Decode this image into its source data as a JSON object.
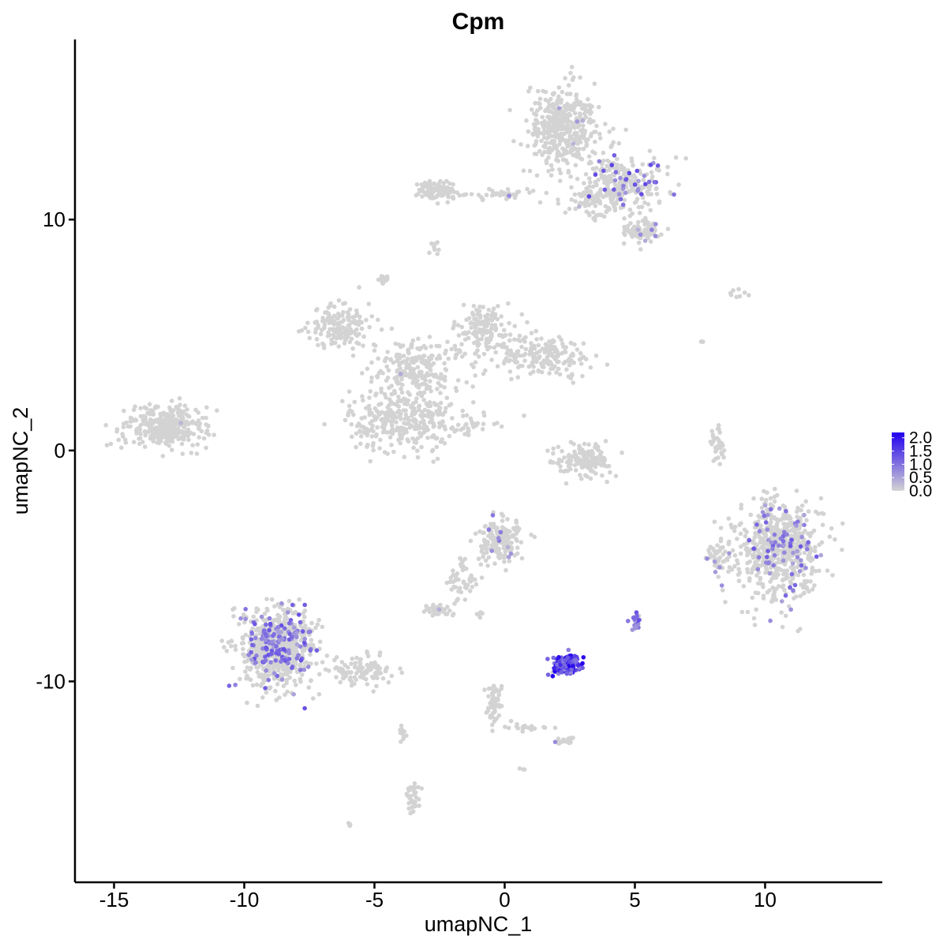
{
  "chart_data": {
    "type": "scatter",
    "title": "Cpm",
    "xlabel": "umapNC_1",
    "ylabel": "umapNC_2",
    "xlim": [
      -16.5,
      14.5
    ],
    "ylim": [
      -18.7,
      17.8
    ],
    "x_ticks": [
      -15,
      -10,
      -5,
      0,
      5,
      10
    ],
    "x_tick_labels": [
      "-15",
      "-10",
      "-5",
      "0",
      "5",
      "10"
    ],
    "y_ticks": [
      10,
      0,
      -10
    ],
    "y_tick_labels": [
      "10",
      "0",
      "-10"
    ],
    "grid": false,
    "legend": {
      "placement": "right",
      "type": "colorbar",
      "breaks": [
        2.0,
        1.5,
        1.0,
        0.5,
        0.0
      ],
      "labels": [
        "2.0",
        "1.5",
        "1.0",
        "0.5",
        "0.0"
      ],
      "range": [
        0,
        2.2
      ],
      "low_color": "#d3d3d3",
      "high_color": "#2200ee"
    },
    "point_color_low": "#d3d3d3",
    "point_color_high": "#2200ee",
    "clusters": [
      {
        "id": "c1",
        "cx": 2.3,
        "cy": 14.0,
        "sx": 0.9,
        "sy": 1.2,
        "n": 420,
        "expr_frac": 0.02,
        "expr_max": 0.8
      },
      {
        "id": "c2",
        "cx": 4.7,
        "cy": 11.5,
        "sx": 1.0,
        "sy": 0.8,
        "n": 260,
        "expr_frac": 0.12,
        "expr_max": 1.5
      },
      {
        "id": "c3",
        "cx": 5.3,
        "cy": 9.5,
        "sx": 0.6,
        "sy": 0.4,
        "n": 90,
        "expr_frac": 0.05,
        "expr_max": 1.0
      },
      {
        "id": "c4",
        "cx": 3.3,
        "cy": 10.8,
        "sx": 0.6,
        "sy": 0.5,
        "n": 70,
        "expr_frac": 0.02,
        "expr_max": 0.8
      },
      {
        "id": "c5",
        "cx": -2.6,
        "cy": 11.3,
        "sx": 0.5,
        "sy": 0.3,
        "n": 100,
        "expr_frac": 0.0,
        "expr_max": 0
      },
      {
        "id": "c6",
        "cx": -0.2,
        "cy": 11.1,
        "sx": 1.0,
        "sy": 0.15,
        "n": 40,
        "expr_frac": 0.02,
        "expr_max": 0.8
      },
      {
        "id": "c7",
        "cx": -2.7,
        "cy": 8.8,
        "sx": 0.15,
        "sy": 0.25,
        "n": 10,
        "expr_frac": 0.0,
        "expr_max": 0
      },
      {
        "id": "c8",
        "cx": -4.7,
        "cy": 7.4,
        "sx": 0.15,
        "sy": 0.15,
        "n": 15,
        "expr_frac": 0.0,
        "expr_max": 0
      },
      {
        "id": "c9",
        "cx": -6.3,
        "cy": 5.3,
        "sx": 0.8,
        "sy": 0.6,
        "n": 150,
        "expr_frac": 0.0,
        "expr_max": 0
      },
      {
        "id": "c10",
        "cx": -3.5,
        "cy": 3.5,
        "sx": 1.2,
        "sy": 1.0,
        "n": 220,
        "expr_frac": 0.005,
        "expr_max": 0.8
      },
      {
        "id": "c11",
        "cx": -4.0,
        "cy": 1.3,
        "sx": 1.3,
        "sy": 0.9,
        "n": 300,
        "expr_frac": 0.0,
        "expr_max": 0
      },
      {
        "id": "c12",
        "cx": -0.8,
        "cy": 5.2,
        "sx": 0.8,
        "sy": 0.8,
        "n": 150,
        "expr_frac": 0.0,
        "expr_max": 0
      },
      {
        "id": "c13",
        "cx": 1.6,
        "cy": 4.1,
        "sx": 1.2,
        "sy": 0.6,
        "n": 180,
        "expr_frac": 0.0,
        "expr_max": 0
      },
      {
        "id": "c14",
        "cx": -1.7,
        "cy": 1.1,
        "sx": 0.9,
        "sy": 0.25,
        "n": 40,
        "expr_frac": 0.0,
        "expr_max": 0
      },
      {
        "id": "c15",
        "cx": -13.0,
        "cy": 1.0,
        "sx": 1.0,
        "sy": 0.6,
        "n": 360,
        "expr_frac": 0.005,
        "expr_max": 0.8
      },
      {
        "id": "c16",
        "cx": 3.0,
        "cy": -0.4,
        "sx": 0.7,
        "sy": 0.45,
        "n": 150,
        "expr_frac": 0.0,
        "expr_max": 0
      },
      {
        "id": "c17",
        "cx": 8.2,
        "cy": 0.4,
        "sx": 0.15,
        "sy": 0.6,
        "n": 35,
        "expr_frac": 0.0,
        "expr_max": 0
      },
      {
        "id": "c18",
        "cx": 10.5,
        "cy": -4.3,
        "sx": 1.1,
        "sy": 1.3,
        "n": 650,
        "expr_frac": 0.12,
        "expr_max": 1.3
      },
      {
        "id": "c19",
        "cx": 8.2,
        "cy": -4.6,
        "sx": 0.25,
        "sy": 0.5,
        "n": 40,
        "expr_frac": 0.05,
        "expr_max": 1.0
      },
      {
        "id": "c20",
        "cx": -0.2,
        "cy": -3.9,
        "sx": 0.55,
        "sy": 0.6,
        "n": 190,
        "expr_frac": 0.04,
        "expr_max": 1.0
      },
      {
        "id": "c21",
        "cx": -1.6,
        "cy": -5.8,
        "sx": 0.4,
        "sy": 0.8,
        "n": 50,
        "expr_frac": 0.0,
        "expr_max": 0
      },
      {
        "id": "c22",
        "cx": -2.5,
        "cy": -6.9,
        "sx": 0.35,
        "sy": 0.2,
        "n": 40,
        "expr_frac": 0.05,
        "expr_max": 0.8
      },
      {
        "id": "c23",
        "cx": -8.7,
        "cy": -8.5,
        "sx": 0.9,
        "sy": 1.1,
        "n": 750,
        "expr_frac": 0.18,
        "expr_max": 1.4
      },
      {
        "id": "c24",
        "cx": -5.4,
        "cy": -9.6,
        "sx": 0.8,
        "sy": 0.4,
        "n": 110,
        "expr_frac": 0.0,
        "expr_max": 0
      },
      {
        "id": "c25",
        "cx": 2.4,
        "cy": -9.3,
        "sx": 0.35,
        "sy": 0.3,
        "n": 150,
        "expr_frac": 0.9,
        "expr_max": 2.2
      },
      {
        "id": "c26",
        "cx": 5.0,
        "cy": -7.4,
        "sx": 0.12,
        "sy": 0.2,
        "n": 30,
        "expr_frac": 0.6,
        "expr_max": 1.5
      },
      {
        "id": "c27",
        "cx": -0.4,
        "cy": -10.9,
        "sx": 0.2,
        "sy": 0.6,
        "n": 50,
        "expr_frac": 0.0,
        "expr_max": 0
      },
      {
        "id": "c28",
        "cx": 2.3,
        "cy": -12.6,
        "sx": 0.2,
        "sy": 0.12,
        "n": 20,
        "expr_frac": 0.1,
        "expr_max": 0.8
      },
      {
        "id": "c29",
        "cx": -3.5,
        "cy": -14.9,
        "sx": 0.15,
        "sy": 0.5,
        "n": 40,
        "expr_frac": 0.0,
        "expr_max": 0
      },
      {
        "id": "c30",
        "cx": 0.8,
        "cy": -12.0,
        "sx": 0.6,
        "sy": 0.15,
        "n": 20,
        "expr_frac": 0.0,
        "expr_max": 0
      },
      {
        "id": "c31",
        "cx": -3.9,
        "cy": -12.2,
        "sx": 0.1,
        "sy": 0.4,
        "n": 10,
        "expr_frac": 0.0,
        "expr_max": 0
      },
      {
        "id": "c32",
        "cx": 9.0,
        "cy": 6.8,
        "sx": 0.5,
        "sy": 0.1,
        "n": 8,
        "expr_frac": 0.0,
        "expr_max": 0
      },
      {
        "id": "c33",
        "cx": 7.6,
        "cy": 4.8,
        "sx": 0.1,
        "sy": 0.1,
        "n": 3,
        "expr_frac": 0.0,
        "expr_max": 0
      },
      {
        "id": "c34",
        "cx": -6.0,
        "cy": -16.2,
        "sx": 0.08,
        "sy": 0.08,
        "n": 3,
        "expr_frac": 0.0,
        "expr_max": 0
      },
      {
        "id": "c35",
        "cx": 0.7,
        "cy": -13.8,
        "sx": 0.1,
        "sy": 0.05,
        "n": 3,
        "expr_frac": 0.0,
        "expr_max": 0
      },
      {
        "id": "c36",
        "cx": -1.0,
        "cy": -7.1,
        "sx": 0.15,
        "sy": 0.1,
        "n": 5,
        "expr_frac": 0.0,
        "expr_max": 0
      }
    ]
  }
}
